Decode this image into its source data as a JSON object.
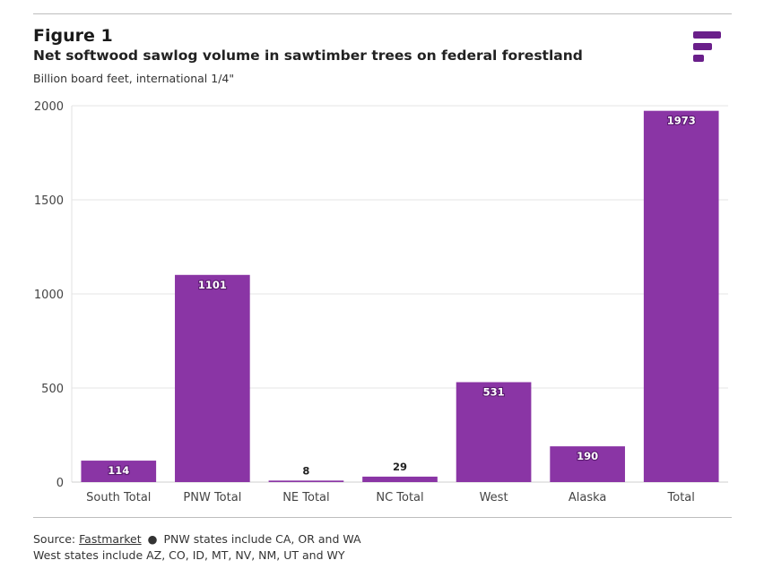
{
  "figure_label": "Figure 1",
  "title": "Net softwood sawlog volume in sawtimber trees on federal forestland",
  "subtitle": "Billion board feet, international 1/4\"",
  "footer": {
    "source_prefix": "Source:",
    "source_link": "Fastmarket",
    "bullet": "●",
    "note1": "PNW states include CA, OR and WA",
    "note2": "West states include AZ, CO, ID, MT, NV, NM, UT and WY"
  },
  "colors": {
    "bar": "#8a35a5",
    "logo": "#6a1f8a",
    "grid": "#e6e6e6"
  },
  "chart_data": {
    "type": "bar",
    "categories": [
      "South Total",
      "PNW Total",
      "NE Total",
      "NC Total",
      "West",
      "Alaska",
      "Total"
    ],
    "values": [
      114,
      1101,
      8,
      29,
      531,
      190,
      1973
    ],
    "ylim": [
      0,
      2000
    ],
    "yticks": [
      0,
      500,
      1000,
      1500,
      2000
    ],
    "grid": true,
    "legend": "none"
  }
}
